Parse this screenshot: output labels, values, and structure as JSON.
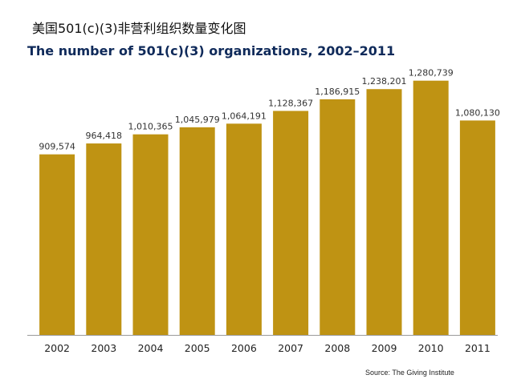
{
  "chart_data": {
    "type": "bar",
    "title_cn": "美国501(c)(3)非营利组织数量变化图",
    "title": "The number of 501(c)(3) organizations, 2002–2011",
    "categories": [
      "2002",
      "2003",
      "2004",
      "2005",
      "2006",
      "2007",
      "2008",
      "2009",
      "2010",
      "2011"
    ],
    "values": [
      909574,
      964418,
      1010365,
      1045979,
      1064191,
      1128367,
      1186915,
      1238201,
      1280739,
      1080130
    ],
    "value_labels": [
      "909,574",
      "964,418",
      "1,010,365",
      "1,045,979",
      "1,064,191",
      "1,128,367",
      "1,186,915",
      "1,238,201",
      "1,280,739",
      "1,080,130"
    ],
    "ylim": [
      0,
      1340000
    ],
    "grid": false,
    "bar_color": "#bf9313",
    "source": "Source: The Giving Institute"
  }
}
